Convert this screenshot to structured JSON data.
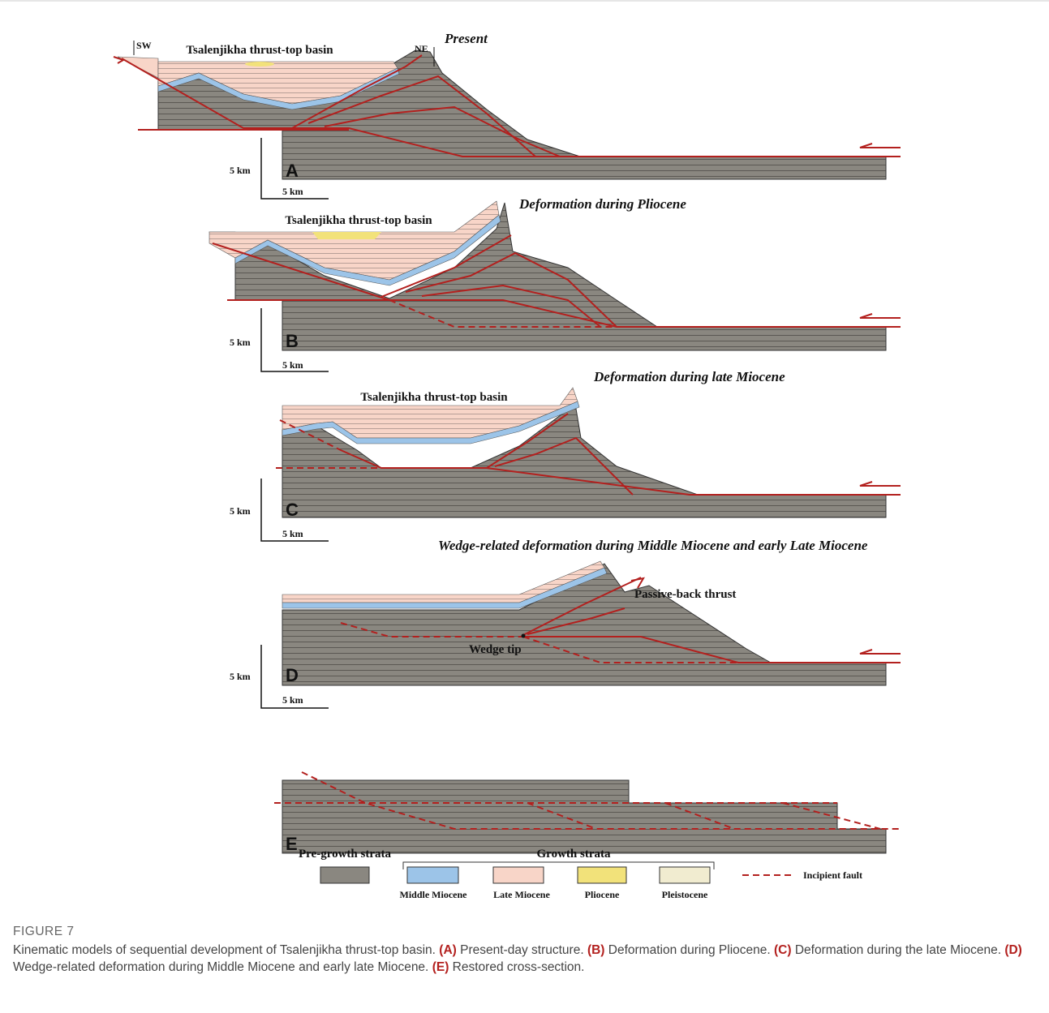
{
  "panels": [
    {
      "letter": "A",
      "title": "Present",
      "basin_label": "Tsalenjikha thrust-top basin",
      "sw": "SW",
      "ne": "NE",
      "scale_vertical": "5 km",
      "scale_horizontal": "5 km"
    },
    {
      "letter": "B",
      "title": "Deformation during Pliocene",
      "basin_label": "Tsalenjikha thrust-top basin",
      "scale_vertical": "5 km",
      "scale_horizontal": "5 km"
    },
    {
      "letter": "C",
      "title": "Deformation during late Miocene",
      "basin_label": "Tsalenjikha thrust-top basin",
      "scale_vertical": "5 km",
      "scale_horizontal": "5 km"
    },
    {
      "letter": "D",
      "title": "Wedge-related deformation during Middle Miocene and early Late Miocene",
      "passive_back_thrust": "Passive-back thrust",
      "wedge_tip": "Wedge tip",
      "scale_vertical": "5 km",
      "scale_horizontal": "5 km"
    },
    {
      "letter": "E"
    }
  ],
  "legend": {
    "pre_growth": "Pre-growth strata",
    "growth": "Growth strata",
    "items": [
      "Middle Miocene",
      "Late Miocene",
      "Pliocene",
      "Pleistocene"
    ],
    "incipient_fault": "Incipient fault"
  },
  "caption": {
    "label": "FIGURE 7",
    "intro": "Kinematic models of sequential development of Tsalenjikha thrust-top basin.",
    "items": [
      {
        "label": "(A)",
        "text": "Present-day structure."
      },
      {
        "label": "(B)",
        "text": "Deformation during Pliocene."
      },
      {
        "label": "(C)",
        "text": "Deformation during the late Miocene."
      },
      {
        "label": "(D)",
        "text": "Wedge-related deformation during Middle Miocene and early late Miocene."
      },
      {
        "label": "(E)",
        "text": "Restored cross-section."
      }
    ]
  }
}
